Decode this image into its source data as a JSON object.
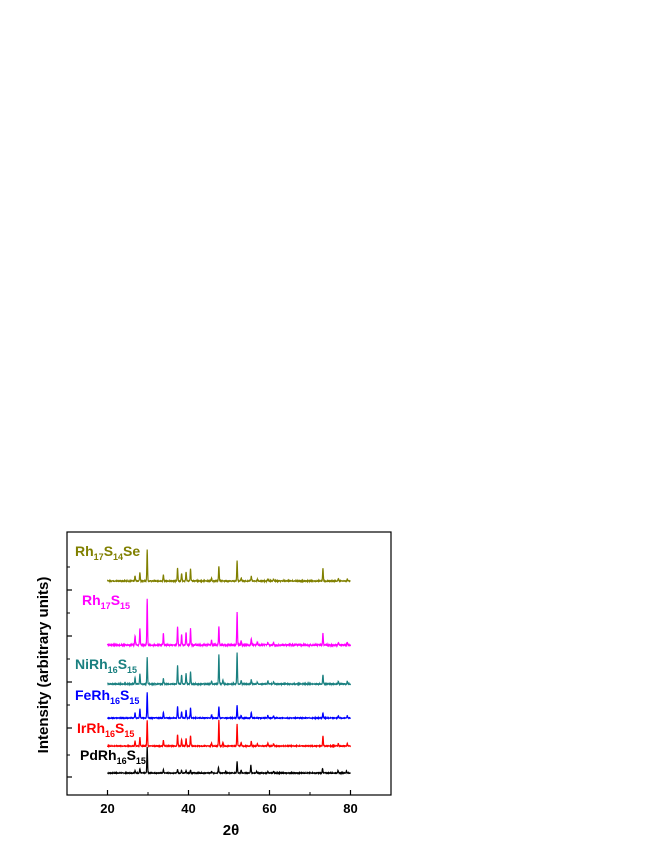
{
  "chart_data": {
    "type": "line",
    "xlabel": "2θ",
    "ylabel": "Intensity (arbitrary units)",
    "xlim": [
      10,
      90
    ],
    "xticks": [
      20,
      40,
      60,
      80
    ],
    "minor_xticks": [
      10,
      30,
      50,
      70,
      90
    ],
    "x_range": [
      20,
      80
    ],
    "yticks_unlabeled": true,
    "grid": false,
    "series": [
      {
        "name": "PdRh16S15",
        "label_parts": [
          "PdRh",
          "16",
          "S",
          "15"
        ],
        "color": "#000000",
        "offset": 0,
        "scale": 1.0,
        "peaks": [
          [
            26.8,
            0.1
          ],
          [
            28.0,
            0.16
          ],
          [
            29.8,
            1.0
          ],
          [
            33.8,
            0.12
          ],
          [
            37.3,
            0.14
          ],
          [
            38.3,
            0.1
          ],
          [
            39.4,
            0.09
          ],
          [
            40.5,
            0.12
          ],
          [
            45.7,
            0.06
          ],
          [
            47.4,
            0.22
          ],
          [
            49.2,
            0.06
          ],
          [
            52.0,
            0.45
          ],
          [
            53.0,
            0.1
          ],
          [
            55.4,
            0.3
          ],
          [
            56.8,
            0.06
          ],
          [
            59.6,
            0.05
          ],
          [
            61.0,
            0.05
          ],
          [
            73.1,
            0.18
          ],
          [
            76.9,
            0.09
          ],
          [
            79.0,
            0.08
          ]
        ]
      },
      {
        "name": "IrRh16S15",
        "label_parts": [
          "IrRh",
          "16",
          "S",
          "15"
        ],
        "color": "#ff0000",
        "offset": 1,
        "scale": 1.0,
        "peaks": [
          [
            26.8,
            0.2
          ],
          [
            28.0,
            0.35
          ],
          [
            29.8,
            1.0
          ],
          [
            33.8,
            0.22
          ],
          [
            37.3,
            0.45
          ],
          [
            38.3,
            0.25
          ],
          [
            39.4,
            0.3
          ],
          [
            40.5,
            0.4
          ],
          [
            45.7,
            0.12
          ],
          [
            47.5,
            1.0
          ],
          [
            48.5,
            0.15
          ],
          [
            52.0,
            0.85
          ],
          [
            53.0,
            0.14
          ],
          [
            55.5,
            0.18
          ],
          [
            57.0,
            0.08
          ],
          [
            59.6,
            0.1
          ],
          [
            61.0,
            0.08
          ],
          [
            73.2,
            0.4
          ],
          [
            77.0,
            0.1
          ],
          [
            79.2,
            0.1
          ]
        ]
      },
      {
        "name": "FeRh16S15",
        "label_parts": [
          "FeRh",
          "16",
          "S",
          "15"
        ],
        "color": "#0000ff",
        "offset": 2,
        "scale": 1.0,
        "peaks": [
          [
            26.8,
            0.2
          ],
          [
            28.0,
            0.35
          ],
          [
            29.8,
            1.0
          ],
          [
            33.8,
            0.22
          ],
          [
            37.3,
            0.45
          ],
          [
            38.3,
            0.25
          ],
          [
            39.4,
            0.3
          ],
          [
            40.5,
            0.4
          ],
          [
            45.7,
            0.12
          ],
          [
            47.5,
            0.45
          ],
          [
            52.0,
            0.5
          ],
          [
            53.0,
            0.1
          ],
          [
            55.5,
            0.22
          ],
          [
            59.6,
            0.1
          ],
          [
            61.0,
            0.08
          ],
          [
            73.2,
            0.2
          ],
          [
            77.0,
            0.08
          ],
          [
            79.2,
            0.08
          ]
        ]
      },
      {
        "name": "NiRh16S15",
        "label_parts": [
          "NiRh",
          "16",
          "S",
          "15"
        ],
        "color": "#1a8080",
        "offset": 3,
        "scale": 1.2,
        "peaks": [
          [
            26.8,
            0.2
          ],
          [
            28.0,
            0.32
          ],
          [
            29.8,
            0.85
          ],
          [
            33.8,
            0.18
          ],
          [
            37.3,
            0.6
          ],
          [
            38.3,
            0.3
          ],
          [
            39.4,
            0.35
          ],
          [
            40.5,
            0.4
          ],
          [
            45.7,
            0.1
          ],
          [
            47.5,
            0.95
          ],
          [
            48.5,
            0.12
          ],
          [
            52.0,
            1.0
          ],
          [
            53.0,
            0.12
          ],
          [
            55.5,
            0.15
          ],
          [
            57.0,
            0.06
          ],
          [
            59.6,
            0.1
          ],
          [
            61.0,
            0.08
          ],
          [
            73.2,
            0.3
          ],
          [
            77.0,
            0.08
          ],
          [
            79.2,
            0.09
          ]
        ]
      },
      {
        "name": "Rh17S15",
        "label_parts": [
          "Rh",
          "17",
          "S",
          "15"
        ],
        "color": "#ff00ff",
        "offset": 4,
        "scale": 1.8,
        "peaks": [
          [
            26.8,
            0.2
          ],
          [
            28.0,
            0.35
          ],
          [
            29.8,
            1.0
          ],
          [
            33.8,
            0.25
          ],
          [
            37.3,
            0.4
          ],
          [
            38.3,
            0.22
          ],
          [
            39.4,
            0.28
          ],
          [
            40.5,
            0.35
          ],
          [
            45.7,
            0.1
          ],
          [
            47.5,
            0.4
          ],
          [
            52.0,
            0.7
          ],
          [
            53.0,
            0.1
          ],
          [
            55.5,
            0.14
          ],
          [
            57.0,
            0.06
          ],
          [
            59.6,
            0.06
          ],
          [
            61.0,
            0.06
          ],
          [
            73.2,
            0.25
          ],
          [
            77.0,
            0.05
          ],
          [
            79.2,
            0.06
          ]
        ]
      },
      {
        "name": "Rh17S14Se",
        "label_parts": [
          "Rh",
          "17",
          "S",
          "14",
          "Se"
        ],
        "color": "#808000",
        "offset": 5,
        "scale": 1.2,
        "peaks": [
          [
            26.8,
            0.16
          ],
          [
            28.0,
            0.28
          ],
          [
            29.8,
            1.0
          ],
          [
            33.8,
            0.2
          ],
          [
            37.3,
            0.42
          ],
          [
            38.3,
            0.25
          ],
          [
            39.4,
            0.3
          ],
          [
            40.5,
            0.4
          ],
          [
            45.7,
            0.08
          ],
          [
            47.5,
            0.48
          ],
          [
            52.0,
            0.65
          ],
          [
            53.0,
            0.1
          ],
          [
            55.5,
            0.16
          ],
          [
            57.0,
            0.05
          ],
          [
            59.6,
            0.06
          ],
          [
            61.0,
            0.06
          ],
          [
            73.2,
            0.4
          ],
          [
            77.0,
            0.08
          ],
          [
            79.2,
            0.06
          ]
        ]
      }
    ]
  }
}
